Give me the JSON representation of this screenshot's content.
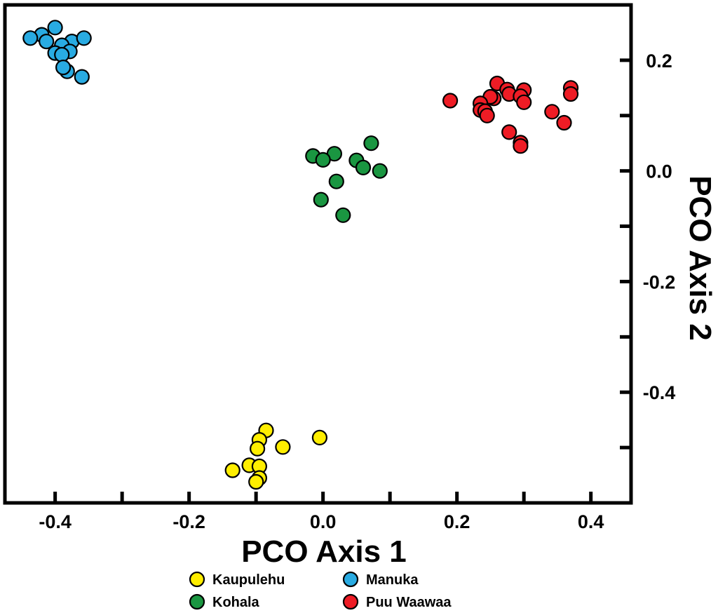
{
  "chart_data": {
    "type": "scatter",
    "title": "",
    "xlabel": "PCO Axis 1",
    "ylabel": "PCO Axis 2",
    "xlim": [
      -0.475,
      0.46
    ],
    "ylim": [
      -0.6,
      0.3
    ],
    "x_ticks": [
      -0.4,
      -0.3,
      -0.2,
      -0.1,
      0.0,
      0.1,
      0.2,
      0.3,
      0.4
    ],
    "x_tick_labels": [
      "-0.4",
      "",
      "-0.2",
      "",
      "0.0",
      "",
      "0.2",
      "",
      "0.4"
    ],
    "y_ticks": [
      0.2,
      0.1,
      0.0,
      -0.1,
      -0.2,
      -0.3,
      -0.4,
      -0.5
    ],
    "y_tick_labels": [
      "0.2",
      "",
      "0.0",
      "",
      "-0.2",
      "",
      "-0.4",
      ""
    ],
    "y_axis_side": "right",
    "legend_position": "bottom-center",
    "series": [
      {
        "name": "Kaupulehu",
        "color": "#FFEE00",
        "points": [
          {
            "x": -0.085,
            "y": -0.469
          },
          {
            "x": -0.095,
            "y": -0.486
          },
          {
            "x": -0.06,
            "y": -0.499
          },
          {
            "x": -0.098,
            "y": -0.502
          },
          {
            "x": -0.005,
            "y": -0.482
          },
          {
            "x": -0.11,
            "y": -0.532
          },
          {
            "x": -0.095,
            "y": -0.534
          },
          {
            "x": -0.135,
            "y": -0.541
          },
          {
            "x": -0.095,
            "y": -0.555
          },
          {
            "x": -0.1,
            "y": -0.562
          }
        ]
      },
      {
        "name": "Kohala",
        "color": "#1A9641",
        "points": [
          {
            "x": -0.015,
            "y": 0.027
          },
          {
            "x": 0.017,
            "y": 0.031
          },
          {
            "x": 0.0,
            "y": 0.02
          },
          {
            "x": 0.05,
            "y": 0.019
          },
          {
            "x": 0.072,
            "y": 0.05
          },
          {
            "x": 0.06,
            "y": 0.006
          },
          {
            "x": 0.085,
            "y": 0.0
          },
          {
            "x": 0.02,
            "y": -0.019
          },
          {
            "x": -0.003,
            "y": -0.052
          },
          {
            "x": 0.03,
            "y": -0.08
          }
        ]
      },
      {
        "name": "Manuka",
        "color": "#29ABE2",
        "points": [
          {
            "x": -0.4,
            "y": 0.259
          },
          {
            "x": -0.42,
            "y": 0.246
          },
          {
            "x": -0.437,
            "y": 0.24
          },
          {
            "x": -0.413,
            "y": 0.234
          },
          {
            "x": -0.375,
            "y": 0.234
          },
          {
            "x": -0.357,
            "y": 0.24
          },
          {
            "x": -0.39,
            "y": 0.227
          },
          {
            "x": -0.4,
            "y": 0.213
          },
          {
            "x": -0.378,
            "y": 0.216
          },
          {
            "x": -0.39,
            "y": 0.21
          },
          {
            "x": -0.382,
            "y": 0.18
          },
          {
            "x": -0.388,
            "y": 0.187
          },
          {
            "x": -0.36,
            "y": 0.17
          }
        ]
      },
      {
        "name": "Puu Waawaa",
        "color": "#EE1C25",
        "points": [
          {
            "x": 0.19,
            "y": 0.127
          },
          {
            "x": 0.26,
            "y": 0.158
          },
          {
            "x": 0.275,
            "y": 0.147
          },
          {
            "x": 0.3,
            "y": 0.146
          },
          {
            "x": 0.37,
            "y": 0.15
          },
          {
            "x": 0.37,
            "y": 0.139
          },
          {
            "x": 0.255,
            "y": 0.131
          },
          {
            "x": 0.25,
            "y": 0.134
          },
          {
            "x": 0.235,
            "y": 0.122
          },
          {
            "x": 0.278,
            "y": 0.139
          },
          {
            "x": 0.295,
            "y": 0.135
          },
          {
            "x": 0.3,
            "y": 0.124
          },
          {
            "x": 0.235,
            "y": 0.11
          },
          {
            "x": 0.242,
            "y": 0.108
          },
          {
            "x": 0.245,
            "y": 0.1
          },
          {
            "x": 0.342,
            "y": 0.107
          },
          {
            "x": 0.36,
            "y": 0.087
          },
          {
            "x": 0.278,
            "y": 0.07
          },
          {
            "x": 0.295,
            "y": 0.051
          },
          {
            "x": 0.295,
            "y": 0.045
          }
        ]
      }
    ]
  }
}
